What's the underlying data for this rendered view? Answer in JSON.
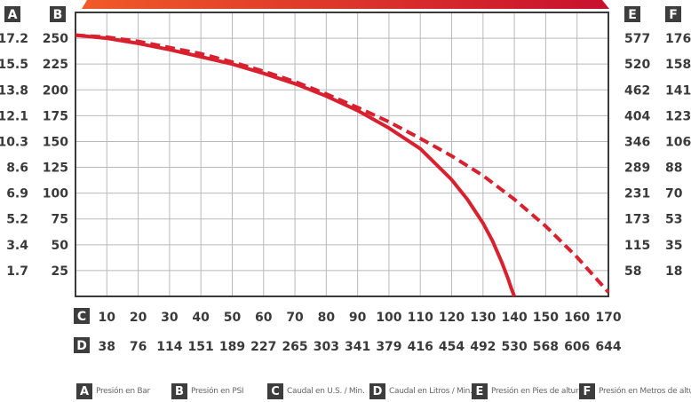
{
  "chart_data": {
    "type": "line",
    "axis_letters": {
      "a": "A",
      "b": "B",
      "c": "C",
      "d": "D",
      "e": "E",
      "f": "F"
    },
    "left_axis_bar": [
      "17.2",
      "15.5",
      "13.8",
      "12.1",
      "10.3",
      "8.6",
      "6.9",
      "5.2",
      "3.4",
      "1.7"
    ],
    "left_axis_psi": [
      "250",
      "225",
      "200",
      "175",
      "150",
      "125",
      "100",
      "75",
      "50",
      "25"
    ],
    "right_axis_ft": [
      "577",
      "520",
      "462",
      "404",
      "346",
      "289",
      "231",
      "173",
      "115",
      "58"
    ],
    "right_axis_m": [
      "176",
      "158",
      "141",
      "123",
      "106",
      "88",
      "70",
      "53",
      "35",
      "18"
    ],
    "bottom_axis_usgpm": [
      "10",
      "20",
      "30",
      "40",
      "50",
      "60",
      "70",
      "80",
      "90",
      "100",
      "110",
      "120",
      "130",
      "140",
      "150",
      "160",
      "170"
    ],
    "bottom_axis_lpm": [
      "38",
      "76",
      "114",
      "151",
      "189",
      "227",
      "265",
      "303",
      "341",
      "379",
      "416",
      "454",
      "492",
      "530",
      "568",
      "606",
      "644"
    ],
    "xlim": [
      0,
      170
    ],
    "ylim": [
      0,
      275
    ],
    "grid": true,
    "series": [
      {
        "style": "solid",
        "color": "#d8202e",
        "x": [
          0,
          10,
          20,
          30,
          40,
          50,
          60,
          70,
          80,
          90,
          100,
          110,
          120,
          125,
          130,
          133,
          136,
          138,
          139,
          140
        ],
        "y": [
          253,
          250,
          245,
          239,
          232,
          225,
          216,
          206,
          194,
          180,
          163,
          143,
          113,
          94,
          71,
          54,
          33,
          17,
          8,
          0
        ]
      },
      {
        "style": "dashed",
        "color": "#d8202e",
        "x": [
          0,
          10,
          20,
          30,
          40,
          50,
          60,
          70,
          80,
          90,
          100,
          110,
          120,
          130,
          140,
          150,
          160,
          170
        ],
        "y": [
          253,
          251,
          247,
          241,
          235,
          227,
          218,
          208,
          196,
          183,
          169,
          153,
          136,
          117,
          94,
          68,
          38,
          4
        ]
      }
    ]
  },
  "legend": [
    {
      "letter": "A",
      "text": "Presión en Bar"
    },
    {
      "letter": "B",
      "text": "Presión en PSI"
    },
    {
      "letter": "C",
      "text": "Caudal en U.S. / Min."
    },
    {
      "letter": "D",
      "text": "Caudal en Litros / Min."
    },
    {
      "letter": "E",
      "text": "Presión en Pies de altura"
    },
    {
      "letter": "F",
      "text": "Presión en Metros de altura"
    }
  ]
}
